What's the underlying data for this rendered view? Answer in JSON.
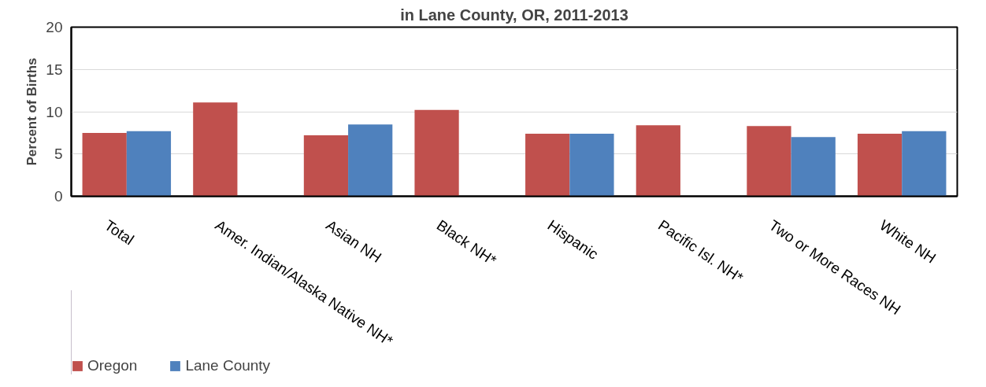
{
  "chart_data": {
    "type": "bar",
    "title": "in Lane County, OR, 2011-2013",
    "ylabel": "Percent of Births",
    "categories": [
      "Total",
      "Amer. Indian/Alaska Native NH*",
      "Asian NH",
      "Black NH*",
      "Hispanic",
      "Pacific Isl. NH*",
      "Two or More Races NH",
      "White NH"
    ],
    "series": [
      {
        "name": "Oregon",
        "color": "#c0504d",
        "values": [
          7.5,
          11.1,
          7.2,
          10.2,
          7.4,
          8.4,
          8.3,
          7.4
        ]
      },
      {
        "name": "Lane County",
        "color": "#4f81bd",
        "values": [
          7.7,
          null,
          8.5,
          null,
          7.4,
          null,
          7.0,
          7.7
        ]
      }
    ],
    "ylim": [
      0,
      20
    ],
    "yticks": [
      0,
      5,
      10,
      15,
      20
    ],
    "grid": "y",
    "legend": "bottom left"
  }
}
